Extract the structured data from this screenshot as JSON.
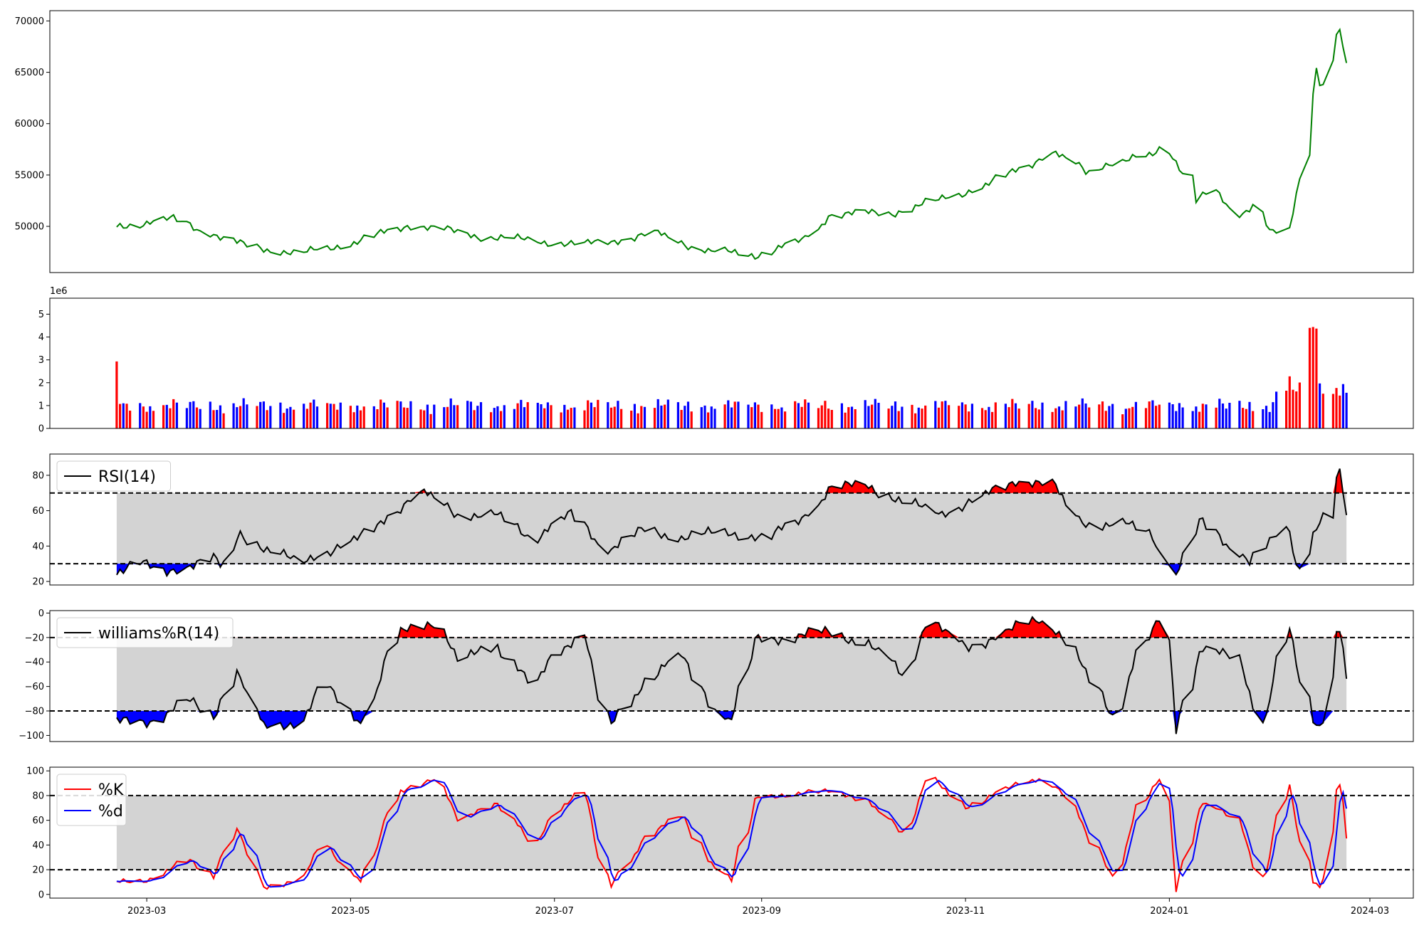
{
  "chart_data": [
    {
      "type": "line",
      "name": "price",
      "yticks": [
        50000,
        55000,
        60000,
        65000,
        70000
      ],
      "ylim": [
        45500,
        71000
      ],
      "color": "#008000",
      "values": []
    },
    {
      "type": "bar",
      "name": "volume",
      "yexponent": "1e6",
      "yticks": [
        0,
        1,
        2,
        3,
        4,
        5
      ],
      "ylim": [
        0,
        5.7
      ],
      "colors": {
        "up": "#ff0000",
        "down": "#0000ff",
        "flat": "#000000"
      },
      "values": []
    },
    {
      "type": "line",
      "name": "rsi",
      "legend": [
        "RSI(14)"
      ],
      "legend_position": "top-left",
      "yticks": [
        20,
        40,
        60,
        80
      ],
      "ylim": [
        18,
        92
      ],
      "thresholds": [
        30,
        70
      ],
      "colors": {
        "line": "#000000",
        "overbought": "#ff0000",
        "oversold": "#0000ff",
        "band": "#d3d3d3"
      },
      "values": []
    },
    {
      "type": "line",
      "name": "williams",
      "legend": [
        "williams%R(14)"
      ],
      "legend_position": "top-left",
      "yticks": [
        0,
        -20,
        -40,
        -60,
        -80,
        -100
      ],
      "ylim": [
        -105,
        2
      ],
      "thresholds": [
        -80,
        -20
      ],
      "colors": {
        "line": "#000000",
        "overbought": "#ff0000",
        "oversold": "#0000ff",
        "band": "#d3d3d3"
      },
      "values": []
    },
    {
      "type": "line",
      "name": "stochastic",
      "legend": [
        "%K",
        "%d"
      ],
      "legend_position": "top-left",
      "yticks": [
        0,
        20,
        40,
        60,
        80,
        100
      ],
      "ylim": [
        -3,
        103
      ],
      "thresholds": [
        20,
        80
      ],
      "colors": {
        "k": "#ff0000",
        "d": "#0000ff",
        "band": "#d3d3d3"
      },
      "k_values": [],
      "d_values": []
    }
  ],
  "x_axis": {
    "start_date": "2023-02-20",
    "end_date": "2024-02-23",
    "xlim": [
      "2023-01-31",
      "2024-03-14"
    ],
    "ticks": [
      "2023-03",
      "2023-05",
      "2023-07",
      "2023-09",
      "2023-11",
      "2024-01",
      "2024-03"
    ]
  }
}
